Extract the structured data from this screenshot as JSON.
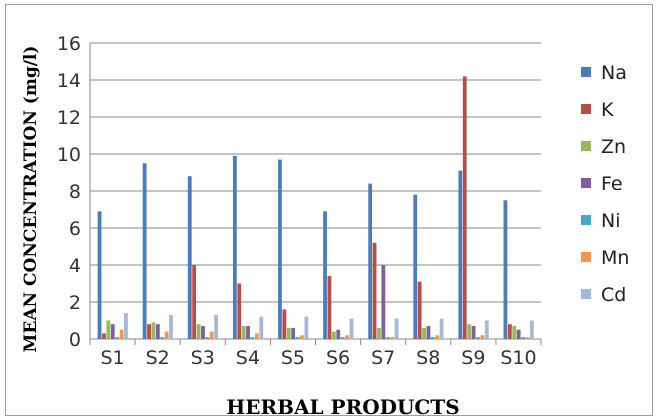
{
  "chart_data": {
    "type": "bar",
    "xlabel": "HERBAL PRODUCTS",
    "ylabel": "MEAN CONCENTRATION (mg/l)",
    "ylim": [
      0,
      16
    ],
    "yticks": [
      "0",
      "2",
      "4",
      "6",
      "8",
      "10",
      "12",
      "14",
      "16"
    ],
    "grid": true,
    "legend_position": "right",
    "categories": [
      "S1",
      "S2",
      "S3",
      "S4",
      "S5",
      "S6",
      "S7",
      "S8",
      "S9",
      "S10"
    ],
    "series": [
      {
        "name": "Na",
        "color": "#4a7ebb",
        "values": [
          6.9,
          9.5,
          8.8,
          9.9,
          9.7,
          6.9,
          8.4,
          7.8,
          9.1,
          7.5
        ]
      },
      {
        "name": "K",
        "color": "#be4b48",
        "values": [
          0.3,
          0.8,
          4.0,
          3.0,
          1.6,
          3.4,
          5.2,
          3.1,
          14.2,
          0.8
        ]
      },
      {
        "name": "Zn",
        "color": "#98b954",
        "values": [
          1.0,
          0.9,
          0.8,
          0.7,
          0.6,
          0.4,
          0.6,
          0.6,
          0.8,
          0.7
        ]
      },
      {
        "name": "Fe",
        "color": "#7d60a0",
        "values": [
          0.8,
          0.8,
          0.7,
          0.7,
          0.6,
          0.5,
          4.0,
          0.7,
          0.7,
          0.5
        ]
      },
      {
        "name": "Ni",
        "color": "#46aac5",
        "values": [
          0.1,
          0.1,
          0.1,
          0.1,
          0.1,
          0.1,
          0.1,
          0.1,
          0.1,
          0.1
        ]
      },
      {
        "name": "Mn",
        "color": "#f79646",
        "values": [
          0.5,
          0.4,
          0.4,
          0.3,
          0.2,
          0.2,
          0.1,
          0.2,
          0.2,
          0.1
        ]
      },
      {
        "name": "Cd",
        "color": "#a5b8d8",
        "values": [
          1.4,
          1.3,
          1.3,
          1.2,
          1.2,
          1.1,
          1.1,
          1.1,
          1.0,
          1.0
        ]
      }
    ]
  }
}
